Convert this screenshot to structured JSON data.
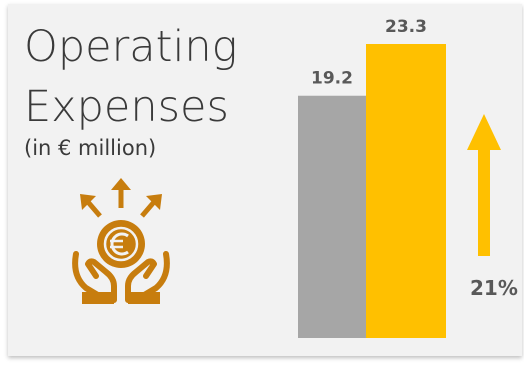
{
  "heading": {
    "line1": "Operating",
    "line2": "Expenses",
    "subtitle": "(in € million)"
  },
  "icon": "money-hands-icon",
  "growth": {
    "label": "21%",
    "arrow_icon": "up-arrow-icon"
  },
  "colors": {
    "bar_previous": "#a6a6a6",
    "bar_current": "#ffc000",
    "icon": "#c77d0e",
    "arrow": "#ffc000"
  },
  "chart_data": {
    "type": "bar",
    "categories": [
      "",
      ""
    ],
    "values": [
      19.2,
      23.3
    ],
    "labels": [
      "19.2",
      "23.3"
    ],
    "ylim": [
      0,
      23.3
    ],
    "grid": false,
    "legend": "none"
  }
}
